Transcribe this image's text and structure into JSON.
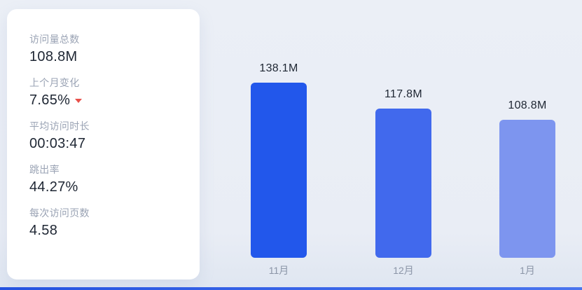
{
  "stats_card": {
    "items": [
      {
        "name": "total-visits",
        "label": "访问量总数",
        "value": "108.8M"
      },
      {
        "name": "change-last-month",
        "label": "上个月变化",
        "value": "7.65%",
        "trend": "down",
        "trend_color": "#e8504a"
      },
      {
        "name": "avg-visit-duration",
        "label": "平均访问时长",
        "value": "00:03:47"
      },
      {
        "name": "bounce-rate",
        "label": "跳出率",
        "value": "44.27%"
      },
      {
        "name": "pages-per-visit",
        "label": "每次访问页数",
        "value": "4.58"
      }
    ]
  },
  "chart_data": {
    "type": "bar",
    "categories": [
      "11月",
      "12月",
      "1月"
    ],
    "values": [
      138.1,
      117.8,
      108.8
    ],
    "value_labels": [
      "138.1M",
      "117.8M",
      "108.8M"
    ],
    "unit": "M",
    "bar_colors": [
      "#2257eb",
      "#4169ed",
      "#7d95ef"
    ],
    "title": "",
    "xlabel": "",
    "ylabel": "",
    "ylim": [
      0,
      145
    ],
    "grid": false,
    "legend": false,
    "axis_lines": false
  },
  "colors": {
    "background": "#e9edf5",
    "card_background": "#ffffff",
    "label_gray": "#9aa3b4",
    "value_dark": "#1e2633",
    "trend_down_red": "#e8504a",
    "accent_bar": "#2553e0"
  }
}
